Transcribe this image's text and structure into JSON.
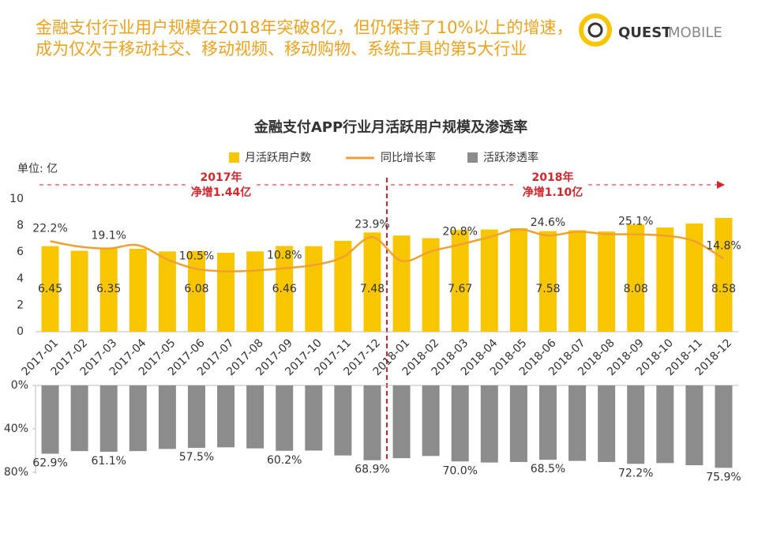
{
  "header": {
    "title": "金融支付行业用户规模在2018年突破8亿，但仍保持了10%以上的增速，成为仅次于移动社交、移动视频、移动购物、系统工具的第5大行业",
    "logo_bold": "QUEST",
    "logo_light": "MOBILE"
  },
  "chart_data": {
    "type": "bar",
    "title": "金融支付APP行业月活跃用户规模及渗透率",
    "unit_label": "单位: 亿",
    "annotations": [
      {
        "year": "2017年",
        "text": "净增1.44亿"
      },
      {
        "year": "2018年",
        "text": "净增1.10亿"
      }
    ],
    "categories": [
      "2017-01",
      "2017-02",
      "2017-03",
      "2017-04",
      "2017-05",
      "2017-06",
      "2017-07",
      "2017-08",
      "2017-09",
      "2017-10",
      "2017-11",
      "2017-12",
      "2018-01",
      "2018-02",
      "2018-03",
      "2018-04",
      "2018-05",
      "2018-06",
      "2018-07",
      "2018-08",
      "2018-09",
      "2018-10",
      "2018-11",
      "2018-12"
    ],
    "ylim": [
      0,
      10
    ],
    "yticks": [
      0,
      2,
      4,
      6,
      8,
      10
    ],
    "y2lim": [
      -16,
      40
    ],
    "y3lim": [
      0,
      80
    ],
    "y3ticks": [
      {
        "value": 0,
        "label": "0%"
      },
      {
        "value": 40,
        "label": "40%"
      },
      {
        "value": 80,
        "label": "80%"
      }
    ],
    "series": [
      {
        "name": "月活跃用户数",
        "type": "bar",
        "axis": "y",
        "color": "#f7c600",
        "values": [
          6.45,
          6.1,
          6.35,
          6.25,
          6.05,
          6.08,
          5.95,
          6.05,
          6.46,
          6.45,
          6.85,
          7.48,
          7.25,
          7.05,
          7.67,
          7.7,
          7.8,
          7.58,
          7.65,
          7.55,
          8.08,
          7.85,
          8.15,
          8.58
        ],
        "value_labels": [
          "6.45",
          null,
          "6.35",
          null,
          null,
          "6.08",
          null,
          null,
          "6.46",
          null,
          null,
          "7.48",
          null,
          null,
          "7.67",
          null,
          null,
          "7.58",
          null,
          null,
          "8.08",
          null,
          null,
          "8.58"
        ]
      },
      {
        "name": "同比增长率",
        "type": "line",
        "axis": "y2",
        "color": "#f0a030",
        "values": [
          22.2,
          19.9,
          19.1,
          20.5,
          14.5,
          10.5,
          9.5,
          9.8,
          10.8,
          12.1,
          15.5,
          23.9,
          13.9,
          17.9,
          20.8,
          23.9,
          27.2,
          24.6,
          26.2,
          25.2,
          25.1,
          24.5,
          22.2,
          14.8
        ],
        "value_labels": [
          "22.2%",
          null,
          "19.1%",
          null,
          null,
          "10.5%",
          null,
          null,
          "10.8%",
          null,
          null,
          "23.9%",
          null,
          null,
          "20.8%",
          null,
          null,
          "24.6%",
          null,
          null,
          "25.1%",
          null,
          null,
          "14.8%"
        ]
      },
      {
        "name": "活跃渗透率",
        "type": "bar",
        "axis": "y3",
        "color": "#8c8c8c",
        "values": [
          62.9,
          60.5,
          61.1,
          60.5,
          58.5,
          57.5,
          57,
          58,
          60.2,
          60,
          64.5,
          68.9,
          67,
          65,
          70.0,
          71,
          70.5,
          68.5,
          69.5,
          70.5,
          72.2,
          71.5,
          73.5,
          75.9
        ],
        "value_labels": [
          "62.9%",
          null,
          "61.1%",
          null,
          null,
          "57.5%",
          null,
          null,
          "60.2%",
          null,
          null,
          "68.9%",
          null,
          null,
          "70.0%",
          null,
          null,
          "68.5%",
          null,
          null,
          "72.2%",
          null,
          null,
          "75.9%"
        ]
      }
    ]
  }
}
